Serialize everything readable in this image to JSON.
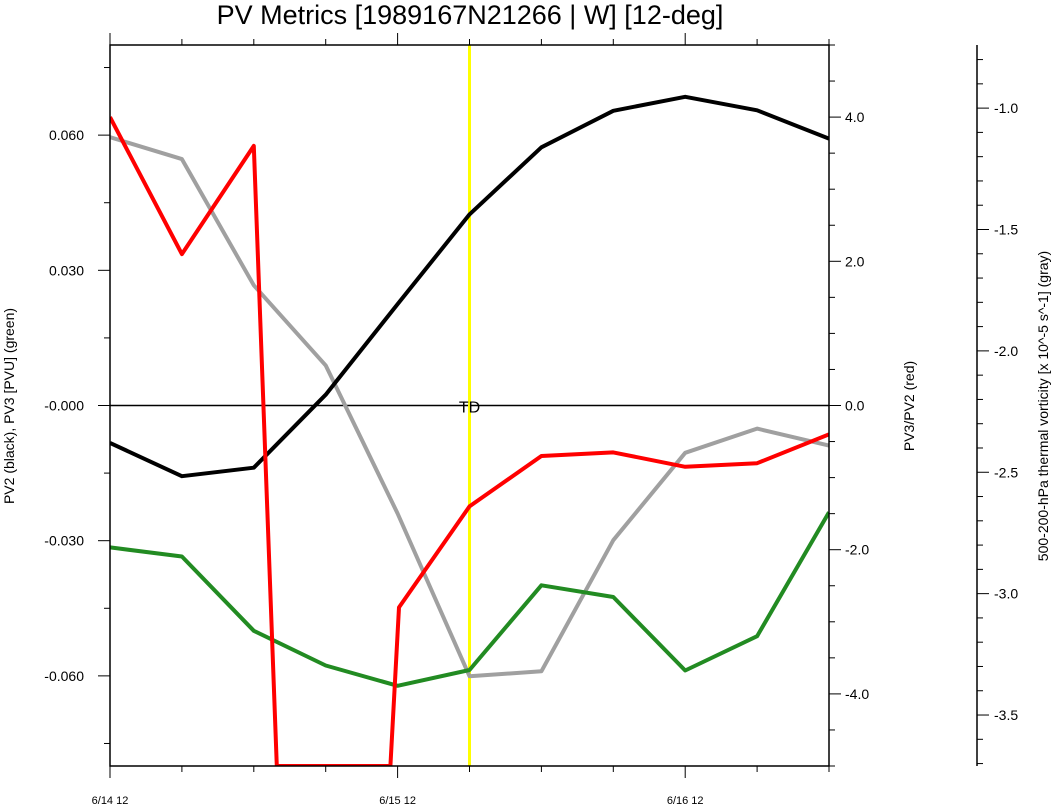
{
  "chart_data": {
    "type": "line",
    "title": "PV Metrics [1989167N21266 | W] [12-deg]",
    "x": [
      "6/14 12",
      "6/14 18",
      "6/15 00",
      "6/15 06",
      "6/15 12",
      "6/15 18",
      "6/16 00",
      "6/16 06",
      "6/16 12",
      "6/16 18",
      "6/17 00"
    ],
    "x_tick_labels": [
      "6/14 12",
      "6/15 12",
      "6/16 12"
    ],
    "left_axis": {
      "label": "PV2 (black), PV3 [PVU] (green)",
      "ylim": [
        -0.08,
        0.08
      ],
      "tick_labels": [
        "0.060",
        "0.030",
        "-0.000",
        "-0.030",
        "-0.060"
      ],
      "tick_values": [
        0.06,
        0.03,
        0.0,
        -0.03,
        -0.06
      ]
    },
    "right_axis": {
      "label": "PV3/PV2 (red)",
      "ylim": [
        -5.0,
        5.0
      ],
      "tick_labels": [
        "4.0",
        "2.0",
        "0.0",
        "-2.0",
        "-4.0"
      ],
      "tick_values": [
        4.0,
        2.0,
        0.0,
        -2.0,
        -4.0
      ]
    },
    "far_right_axis": {
      "label": "500-200-hPa thermal vorticity [x 10^-5 s^-1] (gray)",
      "ylim": [
        -3.71,
        -0.74
      ],
      "tick_labels": [
        "-1.0",
        "-1.5",
        "-2.0",
        "-2.5",
        "-3.0",
        "-3.5"
      ],
      "tick_values": [
        -1.0,
        -1.5,
        -2.0,
        -2.5,
        -3.0,
        -3.5
      ]
    },
    "series": [
      {
        "color": "#000000",
        "axis": "left",
        "values": [
          -0.0083,
          -0.0157,
          -0.0138,
          0.0024,
          0.0225,
          0.0424,
          0.0573,
          0.0654,
          0.0685,
          0.0655,
          0.0592
        ]
      },
      {
        "color": "#228B22",
        "axis": "left",
        "values": [
          -0.0315,
          -0.0335,
          -0.05,
          -0.0577,
          -0.0622,
          -0.0587,
          -0.0399,
          -0.0425,
          -0.0588,
          -0.0512,
          -0.0237
        ]
      },
      {
        "color": "#ff0000",
        "axis": "right",
        "x": [
          0,
          1,
          2,
          2.32,
          3.9,
          4.02,
          5,
          6,
          7,
          8,
          9,
          10
        ],
        "values": [
          4.0,
          2.1,
          3.6,
          -5.0,
          -5.0,
          -2.8,
          -1.4,
          -0.7,
          -0.65,
          -0.85,
          -0.8,
          -0.4
        ]
      },
      {
        "color": "#a0a0a0",
        "axis": "far_right",
        "values": [
          -1.12,
          -1.21,
          -1.73,
          -2.06,
          -2.67,
          -3.34,
          -3.32,
          -2.78,
          -2.42,
          -2.32,
          -2.39
        ]
      }
    ],
    "vertical_marker": {
      "x": 5,
      "color": "#ffff00"
    },
    "zero_line": {
      "value": 0.0
    },
    "annotations": [
      {
        "text": "TD",
        "x": 5,
        "y": 0.0
      }
    ]
  }
}
